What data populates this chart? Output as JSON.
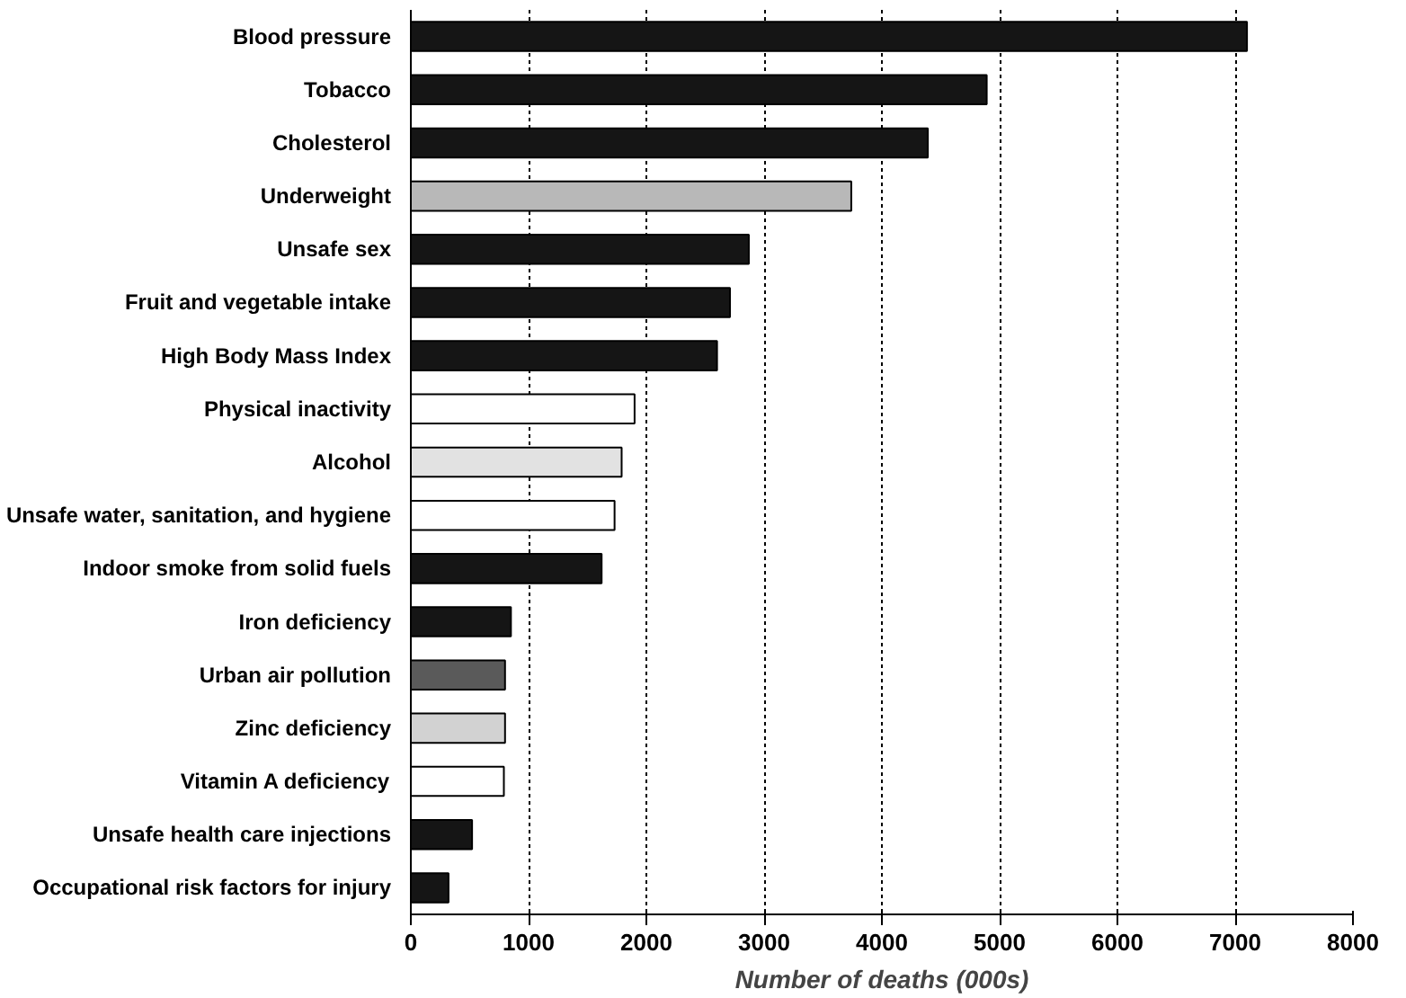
{
  "chart_data": {
    "type": "bar",
    "orientation": "horizontal",
    "xlabel": "Number of deaths (000s)",
    "categories": [
      "Blood pressure",
      "Tobacco",
      "Cholesterol",
      "Underweight",
      "Unsafe sex",
      "Fruit and vegetable intake",
      "High Body Mass Index",
      "Physical inactivity",
      "Alcohol",
      "Unsafe water, sanitation, and hygiene",
      "Indoor smoke from solid fuels",
      "Iron deficiency",
      "Urban air pollution",
      "Zinc deficiency",
      "Vitamin A deficiency",
      "Unsafe health care injections",
      "Occupational risk factors for injury"
    ],
    "values": [
      7100,
      4890,
      4390,
      3740,
      2870,
      2710,
      2600,
      1900,
      1790,
      1730,
      1620,
      850,
      800,
      800,
      790,
      520,
      320
    ],
    "colors": [
      "#151515",
      "#151515",
      "#151515",
      "#b8b8b8",
      "#151515",
      "#151515",
      "#151515",
      "#ffffff",
      "#e2e2e2",
      "#ffffff",
      "#151515",
      "#151515",
      "#5a5a5a",
      "#d2d2d2",
      "#ffffff",
      "#151515",
      "#151515"
    ],
    "xlim": [
      0,
      8000
    ],
    "xticks": [
      0,
      1000,
      2000,
      3000,
      4000,
      5000,
      6000,
      7000,
      8000
    ],
    "grid": "x"
  }
}
